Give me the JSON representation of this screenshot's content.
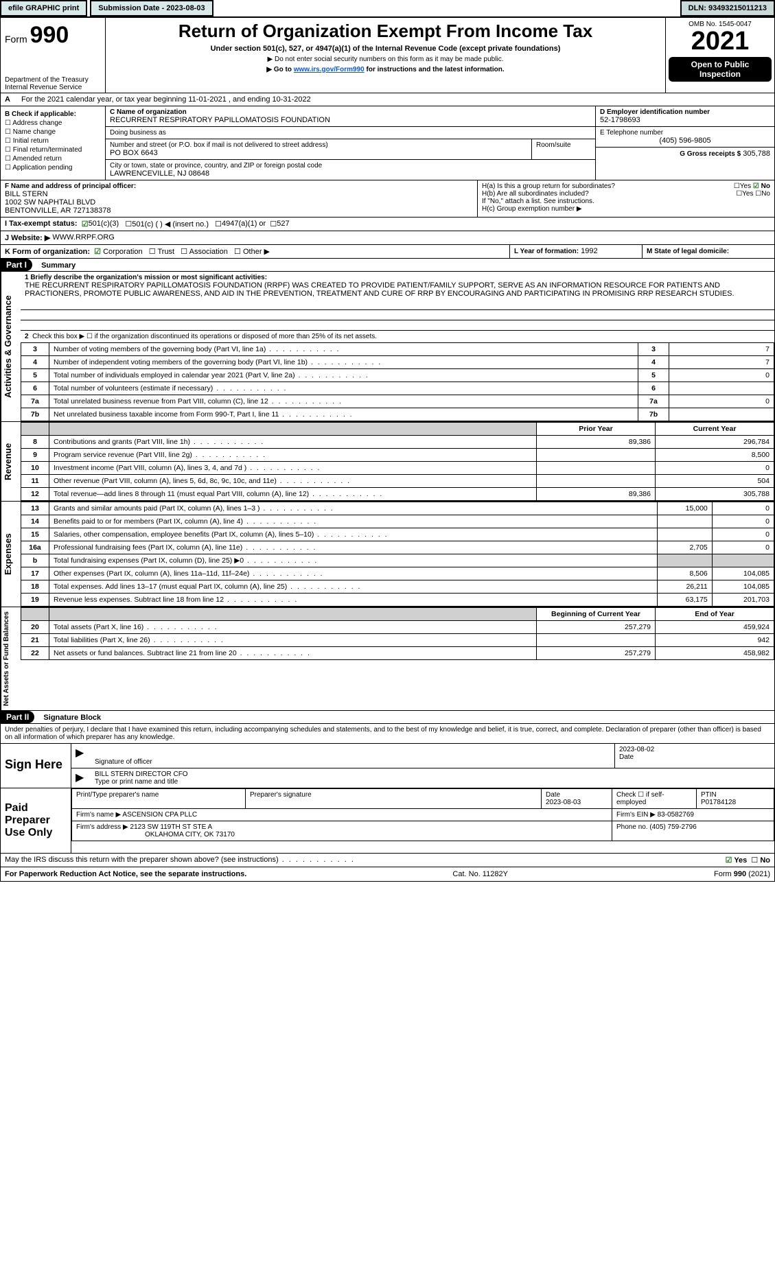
{
  "topbar": {
    "efile": "efile GRAPHIC print",
    "submission_label": "Submission Date - 2023-08-03",
    "dln": "DLN: 93493215011213"
  },
  "header": {
    "form_label": "Form",
    "form_number": "990",
    "title": "Return of Organization Exempt From Income Tax",
    "subtitle": "Under section 501(c), 527, or 4947(a)(1) of the Internal Revenue Code (except private foundations)",
    "note1": "▶ Do not enter social security numbers on this form as it may be made public.",
    "note2_prefix": "▶ Go to ",
    "note2_link": "www.irs.gov/Form990",
    "note2_suffix": " for instructions and the latest information.",
    "dept": "Department of the Treasury",
    "irs": "Internal Revenue Service",
    "omb": "OMB No. 1545-0047",
    "year": "2021",
    "open": "Open to Public Inspection"
  },
  "periodA": "For the 2021 calendar year, or tax year beginning 11-01-2021    , and ending 10-31-2022",
  "checkboxes": {
    "title": "B Check if applicable:",
    "items": [
      "Address change",
      "Name change",
      "Initial return",
      "Final return/terminated",
      "Amended return",
      "Application pending"
    ]
  },
  "orgbox": {
    "c_label": "C Name of organization",
    "org_name": "RECURRENT RESPIRATORY PAPILLOMATOSIS FOUNDATION",
    "dba_label": "Doing business as",
    "dba": "",
    "street_label": "Number and street (or P.O. box if mail is not delivered to street address)",
    "room_label": "Room/suite",
    "street": "PO BOX 6643",
    "city_label": "City or town, state or province, country, and ZIP or foreign postal code",
    "city": "LAWRENCEVILLE, NJ  08648"
  },
  "d_ein_label": "D Employer identification number",
  "d_ein": "52-1798693",
  "e_phone_label": "E Telephone number",
  "e_phone": "(405) 596-9805",
  "g_gross_label": "G Gross receipts $",
  "g_gross": "305,788",
  "f_block": {
    "label": "F  Name and address of principal officer:",
    "name": "BILL STERN",
    "addr1": "1002 SW NAPHTALI BLVD",
    "addr2": "BENTONVILLE, AR  727138378"
  },
  "h_block": {
    "ha": "H(a)  Is this a group return for subordinates?",
    "ha_yes": "Yes",
    "ha_no": "No",
    "hb": "H(b)  Are all subordinates included?",
    "hb_note": "If \"No,\" attach a list. See instructions.",
    "hc": "H(c)  Group exemption number ▶"
  },
  "i_tax": {
    "label": "I    Tax-exempt status:",
    "opt1": "501(c)(3)",
    "opt2": "501(c) (  ) ◀ (insert no.)",
    "opt3": "4947(a)(1) or",
    "opt4": "527"
  },
  "j_site": {
    "label": "J    Website: ▶",
    "value": "WWW.RRPF.ORG"
  },
  "k_form": {
    "label": "K Form of organization:",
    "opts": [
      "Corporation",
      "Trust",
      "Association",
      "Other ▶"
    ]
  },
  "l_year": {
    "label": "L Year of formation:",
    "value": "1992"
  },
  "m_state": {
    "label": "M State of legal domicile:",
    "value": ""
  },
  "part1": {
    "title": "Part I",
    "name": "Summary",
    "mission_label": "1  Briefly describe the organization's mission or most significant activities:",
    "mission": "THE RECURRENT RESPIRATORY PAPILLOMATOSIS FOUNDATION (RRPF) WAS CREATED TO PROVIDE PATIENT/FAMILY SUPPORT, SERVE AS AN INFORMATION RESOURCE FOR PATIENTS AND PRACTIONERS, PROMOTE PUBLIC AWARENESS, AND AID IN THE PREVENTION, TREATMENT AND CURE OF RRP BY ENCOURAGING AND PARTICIPATING IN PROMISING RRP RESEARCH STUDIES.",
    "line2": "Check this box ▶ ☐  if the organization discontinued its operations or disposed of more than 25% of its net assets.",
    "govern_rows": [
      {
        "n": "3",
        "t": "Number of voting members of the governing body (Part VI, line 1a)",
        "box": "3",
        "v": "7"
      },
      {
        "n": "4",
        "t": "Number of independent voting members of the governing body (Part VI, line 1b)",
        "box": "4",
        "v": "7"
      },
      {
        "n": "5",
        "t": "Total number of individuals employed in calendar year 2021 (Part V, line 2a)",
        "box": "5",
        "v": "0"
      },
      {
        "n": "6",
        "t": "Total number of volunteers (estimate if necessary)",
        "box": "6",
        "v": ""
      },
      {
        "n": "7a",
        "t": "Total unrelated business revenue from Part VIII, column (C), line 12",
        "box": "7a",
        "v": "0"
      },
      {
        "n": "7b",
        "t": "Net unrelated business taxable income from Form 990-T, Part I, line 11",
        "box": "7b",
        "v": ""
      }
    ],
    "col_prior": "Prior Year",
    "col_current": "Current Year",
    "revenue_rows": [
      {
        "n": "8",
        "t": "Contributions and grants (Part VIII, line 1h)",
        "p": "89,386",
        "c": "296,784"
      },
      {
        "n": "9",
        "t": "Program service revenue (Part VIII, line 2g)",
        "p": "",
        "c": "8,500"
      },
      {
        "n": "10",
        "t": "Investment income (Part VIII, column (A), lines 3, 4, and 7d )",
        "p": "",
        "c": "0"
      },
      {
        "n": "11",
        "t": "Other revenue (Part VIII, column (A), lines 5, 6d, 8c, 9c, 10c, and 11e)",
        "p": "",
        "c": "504"
      },
      {
        "n": "12",
        "t": "Total revenue—add lines 8 through 11 (must equal Part VIII, column (A), line 12)",
        "p": "89,386",
        "c": "305,788"
      }
    ],
    "expense_rows": [
      {
        "n": "13",
        "t": "Grants and similar amounts paid (Part IX, column (A), lines 1–3 )",
        "p": "15,000",
        "c": "0"
      },
      {
        "n": "14",
        "t": "Benefits paid to or for members (Part IX, column (A), line 4)",
        "p": "",
        "c": "0"
      },
      {
        "n": "15",
        "t": "Salaries, other compensation, employee benefits (Part IX, column (A), lines 5–10)",
        "p": "",
        "c": "0"
      },
      {
        "n": "16a",
        "t": "Professional fundraising fees (Part IX, column (A), line 11e)",
        "p": "2,705",
        "c": "0"
      },
      {
        "n": "b",
        "t": "Total fundraising expenses (Part IX, column (D), line 25) ▶0",
        "p": "GREY",
        "c": "GREY"
      },
      {
        "n": "17",
        "t": "Other expenses (Part IX, column (A), lines 11a–11d, 11f–24e)",
        "p": "8,506",
        "c": "104,085"
      },
      {
        "n": "18",
        "t": "Total expenses. Add lines 13–17 (must equal Part IX, column (A), line 25)",
        "p": "26,211",
        "c": "104,085"
      },
      {
        "n": "19",
        "t": "Revenue less expenses. Subtract line 18 from line 12",
        "p": "63,175",
        "c": "201,703"
      }
    ],
    "col_begin": "Beginning of Current Year",
    "col_end": "End of Year",
    "net_rows": [
      {
        "n": "20",
        "t": "Total assets (Part X, line 16)",
        "p": "257,279",
        "c": "459,924"
      },
      {
        "n": "21",
        "t": "Total liabilities (Part X, line 26)",
        "p": "",
        "c": "942"
      },
      {
        "n": "22",
        "t": "Net assets or fund balances. Subtract line 21 from line 20",
        "p": "257,279",
        "c": "458,982"
      }
    ],
    "vlabels": {
      "gov": "Activities & Governance",
      "rev": "Revenue",
      "exp": "Expenses",
      "net": "Net Assets or Fund Balances"
    }
  },
  "part2": {
    "title": "Part II",
    "name": "Signature Block",
    "declaration": "Under penalties of perjury, I declare that I have examined this return, including accompanying schedules and statements, and to the best of my knowledge and belief, it is true, correct, and complete. Declaration of preparer (other than officer) is based on all information of which preparer has any knowledge.",
    "sign_here": "Sign Here",
    "sig_officer": "Signature of officer",
    "sig_date": "2023-08-02",
    "date_lbl": "Date",
    "officer_name": "BILL STERN  DIRECTOR CFO",
    "type_name": "Type or print name and title",
    "paid": "Paid Preparer Use Only",
    "prep_name_lbl": "Print/Type preparer's name",
    "prep_sig_lbl": "Preparer's signature",
    "prep_date_lbl": "Date",
    "prep_date": "2023-08-03",
    "check_self": "Check ☐ if self-employed",
    "ptin_lbl": "PTIN",
    "ptin": "P01784128",
    "firm_name_lbl": "Firm's name    ▶",
    "firm_name": "ASCENSION CPA PLLC",
    "firm_ein_lbl": "Firm's EIN ▶",
    "firm_ein": "83-0582769",
    "firm_addr_lbl": "Firm's address ▶",
    "firm_addr1": "2123 SW 119TH ST STE A",
    "firm_addr2": "OKLAHOMA CITY, OK  73170",
    "firm_phone_lbl": "Phone no.",
    "firm_phone": "(405) 759-2796",
    "discuss": "May the IRS discuss this return with the preparer shown above? (see instructions)",
    "discuss_yes": "Yes",
    "discuss_no": "No"
  },
  "footer": {
    "left": "For Paperwork Reduction Act Notice, see the separate instructions.",
    "mid": "Cat. No. 11282Y",
    "right": "Form 990 (2021)"
  },
  "colors": {
    "header_cell_bg": "#d9e9e9",
    "grey": "#d0d0d0",
    "link": "#1155cc",
    "check_green": "#2a7a2a"
  }
}
